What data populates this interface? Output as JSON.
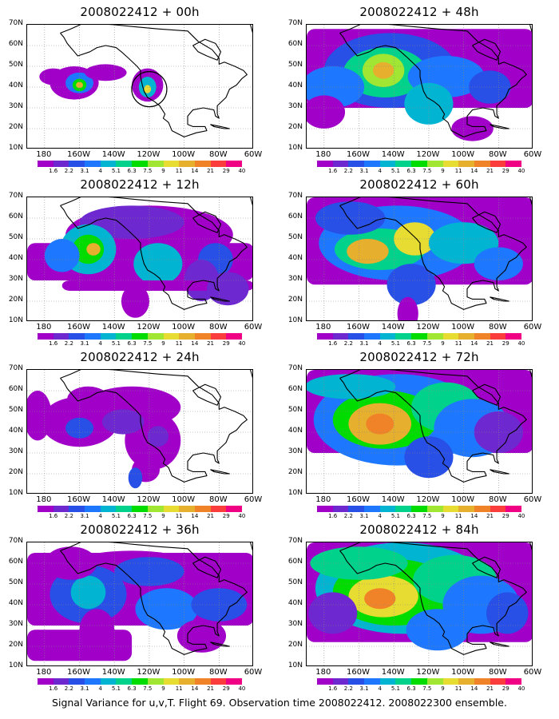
{
  "caption": "Signal Variance for u,v,T. Flight 69. Observation time 2008022412. 2008022300 ensemble.",
  "lat_labels": [
    "70N",
    "60N",
    "50N",
    "40N",
    "30N",
    "20N",
    "10N"
  ],
  "lon_labels": [
    "180",
    "160W",
    "140W",
    "120W",
    "100W",
    "80W",
    "60W"
  ],
  "colorbar": {
    "labels": [
      "1.6",
      "2.2",
      "3.1",
      "4",
      "5.1",
      "6.3",
      "7.5",
      "9",
      "11",
      "14",
      "21",
      "29",
      "40"
    ],
    "colors": [
      "#a000c8",
      "#6e28d0",
      "#2850e6",
      "#1e78ff",
      "#00b4d2",
      "#00d28c",
      "#00dc00",
      "#a0e632",
      "#e6dc32",
      "#e6af2d",
      "#f08228",
      "#fa3c3c",
      "#f00082"
    ]
  },
  "panels": [
    {
      "title": "2008022412 + 00h",
      "level": 0
    },
    {
      "title": "2008022412 + 48h",
      "level": 4
    },
    {
      "title": "2008022412 + 12h",
      "level": 1
    },
    {
      "title": "2008022412 + 60h",
      "level": 5
    },
    {
      "title": "2008022412 + 24h",
      "level": 2
    },
    {
      "title": "2008022412 + 72h",
      "level": 6
    },
    {
      "title": "2008022412 + 36h",
      "level": 3
    },
    {
      "title": "2008022412 + 84h",
      "level": 7
    }
  ]
}
